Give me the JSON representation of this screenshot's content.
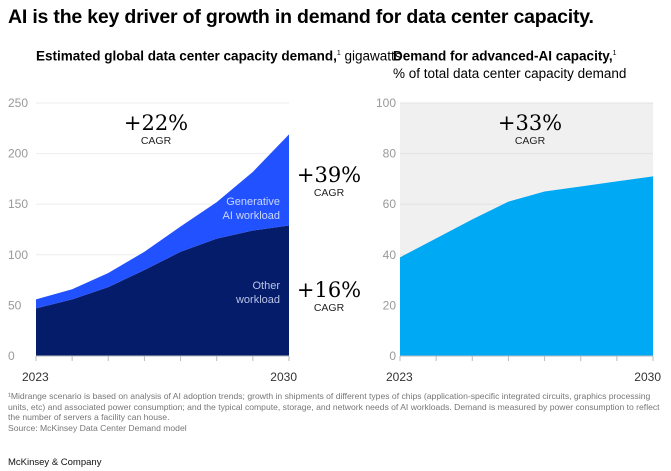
{
  "title": "AI is the key driver of growth in demand for data center capacity.",
  "left_chart": {
    "subtitle_bold": "Estimated global data center capacity demand,",
    "subtitle_sup": "1",
    "subtitle_unit": "gigawatts"
  },
  "right_chart": {
    "subtitle_bold": "Demand for advanced-AI capacity,",
    "subtitle_sup": "1",
    "subtitle_unit": "% of total data center capacity demand"
  },
  "annotations": {
    "left_total": {
      "value": "+22%",
      "label": "CAGR"
    },
    "left_genai": {
      "value": "+39%",
      "label": "CAGR"
    },
    "left_other": {
      "value": "+16%",
      "label": "CAGR"
    },
    "right_total": {
      "value": "+33%",
      "label": "CAGR"
    }
  },
  "chart_data": [
    {
      "type": "area",
      "stacked": true,
      "x": [
        2023,
        2024,
        2025,
        2026,
        2027,
        2028,
        2029,
        2030
      ],
      "x_tick_labels": [
        "2023",
        "2030"
      ],
      "ylim": [
        0,
        250
      ],
      "y_ticks": [
        "0",
        "50",
        "100",
        "150",
        "200",
        "250"
      ],
      "grid": true,
      "series": [
        {
          "name": "Other workload",
          "name_lines": [
            "Other",
            "workload"
          ],
          "color": "#051c6b",
          "values": [
            47,
            56,
            68,
            85,
            103,
            116,
            124,
            129
          ]
        },
        {
          "name": "Generative AI workload",
          "name_lines": [
            "Generative",
            "AI workload"
          ],
          "color": "#2251ff",
          "values": [
            9,
            10,
            14,
            18,
            25,
            36,
            58,
            90
          ]
        }
      ]
    },
    {
      "type": "area",
      "x": [
        2023,
        2024,
        2025,
        2026,
        2027,
        2028,
        2029,
        2030
      ],
      "x_tick_labels": [
        "2023",
        "2030"
      ],
      "ylim": [
        0,
        100
      ],
      "y_ticks": [
        "0",
        "20",
        "40",
        "60",
        "80",
        "100"
      ],
      "grid": true,
      "background": "#f0f0f0",
      "series": [
        {
          "color": "#00a9f4",
          "values": [
            39,
            46.5,
            54,
            61,
            65,
            67,
            69,
            71
          ]
        }
      ]
    }
  ],
  "footnote": "¹Midrange scenario is based on analysis of AI adoption trends; growth in shipments of different types of chips (application-specific integrated circuits, graphics processing units, etc) and associated power consumption; and the typical compute, storage, and network needs of AI workloads. Demand is measured by power consumption to reflect the number of servers a facility can house.",
  "source": "Source: McKinsey Data Center Demand model",
  "brand": "McKinsey & Company"
}
